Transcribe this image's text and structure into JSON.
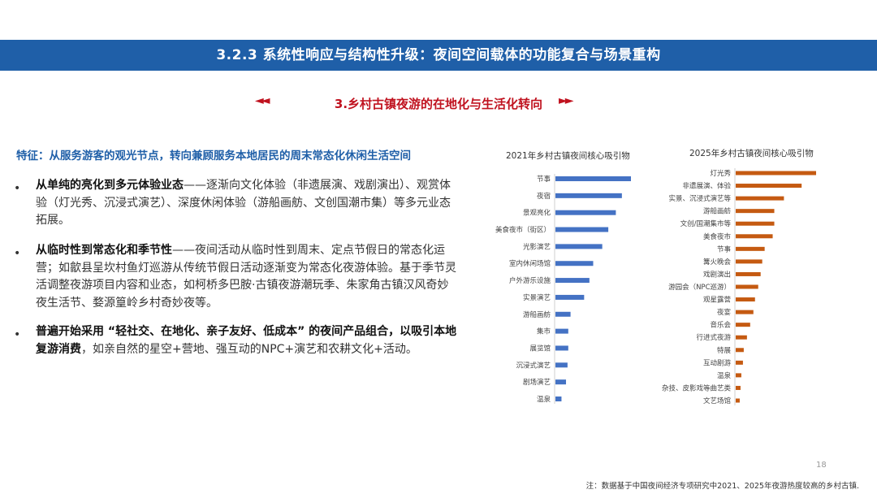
{
  "header": {
    "title": "3.2.3  系统性响应与结构性升级：夜间空间载体的功能复合与场景重构"
  },
  "section": {
    "subtitle": "3.乡村古镇夜游的在地化与生活化转向",
    "arrow_left": "◄◄",
    "arrow_right": "►►"
  },
  "feature": "特征：从服务游客的观光节点，转向兼顾服务本地居民的周末常态化休闲生活空间",
  "bullets": [
    {
      "bold": "从单纯的亮化到多元体验业态",
      "text": "——逐渐向文化体验（非遗展演、戏剧演出）、观赏体验（灯光秀、沉浸式演艺）、深度休闲体验（游船画舫、文创国潮市集）等多元业态拓展。"
    },
    {
      "bold": "从临时性到常态化和季节性",
      "text": "——夜间活动从临时性到周末、定点节假日的常态化运营；如歙县呈坎村鱼灯巡游从传统节假日活动逐渐变为常态化夜游体验。基于季节灵活调整夜游项目内容和业态，如柯桥多巴胺·古镇夜游潮玩季、朱家角古镇汉风奇妙夜生活节、婺源篁岭乡村奇妙夜等。"
    },
    {
      "bold": "普遍开始采用 “轻社交、在地化、亲子友好、低成本” 的夜间产品组合，以吸引本地复游消费",
      "text": "，如亲自然的星空+营地、强互动的NPC+演艺和农耕文化+活动。"
    }
  ],
  "chart_data": [
    {
      "type": "bar",
      "orientation": "horizontal",
      "title": "2021年乡村古镇夜间核心吸引物",
      "color": "#4472c4",
      "categories": [
        "节事",
        "夜宿",
        "景观亮化",
        "美食夜市（街区）",
        "光影演艺",
        "室内休闲场馆",
        "户外游乐设施",
        "实景演艺",
        "游船画舫",
        "集市",
        "展览馆",
        "沉浸式演艺",
        "剧场演艺",
        "温泉"
      ],
      "values": [
        100,
        88,
        80,
        70,
        62,
        50,
        45,
        38,
        20,
        17,
        17,
        16,
        14,
        8
      ]
    },
    {
      "type": "bar",
      "orientation": "horizontal",
      "title": "2025年乡村古镇夜间核心吸引物",
      "color": "#c55a11",
      "categories": [
        "灯光秀",
        "非遗展演、体验",
        "实景、沉浸式演艺等",
        "游船画舫",
        "文创/国潮集市等",
        "美食夜市",
        "节事",
        "篝火晚会",
        "戏剧演出",
        "游园会（NPC巡游）",
        "观星露营",
        "夜宴",
        "音乐会",
        "行进式夜游",
        "特展",
        "互动剧游",
        "温泉",
        "杂技、皮影戏等曲艺类",
        "文艺场馆"
      ],
      "values": [
        100,
        82,
        60,
        48,
        48,
        46,
        36,
        33,
        31,
        28,
        24,
        22,
        18,
        14,
        10,
        9,
        7,
        6,
        5
      ]
    }
  ],
  "page_number": "18",
  "note": "注：数据基于中国夜间经济专项研究中2021、2025年夜游热度较高的乡村古镇."
}
